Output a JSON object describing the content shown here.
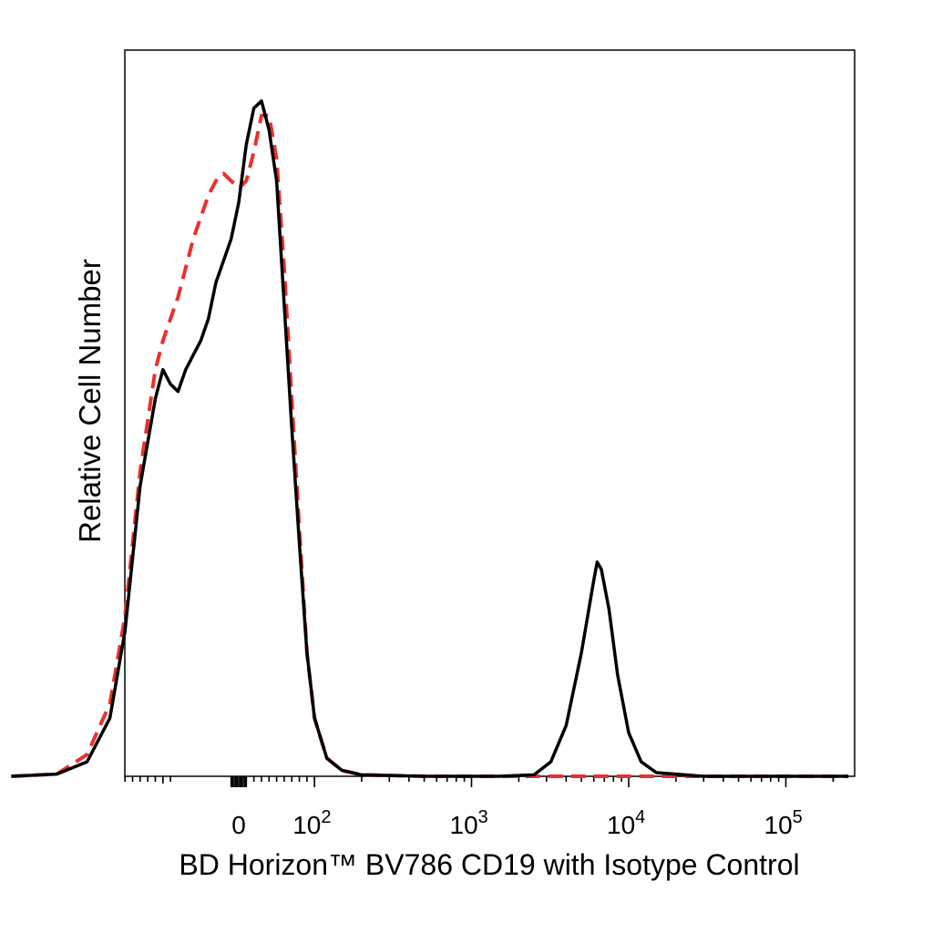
{
  "chart_data": {
    "type": "line",
    "title": "",
    "xlabel": "BD Horizon™ BV786 CD19 with Isotype Control",
    "ylabel": "Relative Cell Number",
    "x_scale": "biexponential",
    "xlim": [
      -300,
      250000
    ],
    "ylim": [
      0,
      1
    ],
    "grid": false,
    "legend": "none",
    "tick_labels": [
      {
        "value": 0,
        "base": "0",
        "exp": ""
      },
      {
        "value": 100,
        "base": "10",
        "exp": "2"
      },
      {
        "value": 1000,
        "base": "10",
        "exp": "3"
      },
      {
        "value": 10000,
        "base": "10",
        "exp": "4"
      },
      {
        "value": 100000,
        "base": "10",
        "exp": "5"
      }
    ],
    "series": [
      {
        "color": "#000000",
        "dash": "solid",
        "points": [
          [
            -300,
            0
          ],
          [
            -240,
            0.003
          ],
          [
            -200,
            0.02
          ],
          [
            -170,
            0.08
          ],
          [
            -150,
            0.2
          ],
          [
            -130,
            0.4
          ],
          [
            -110,
            0.52
          ],
          [
            -100,
            0.56
          ],
          [
            -90,
            0.54
          ],
          [
            -80,
            0.53
          ],
          [
            -70,
            0.56
          ],
          [
            -60,
            0.58
          ],
          [
            -50,
            0.6
          ],
          [
            -40,
            0.63
          ],
          [
            -30,
            0.68
          ],
          [
            -20,
            0.71
          ],
          [
            -10,
            0.74
          ],
          [
            0,
            0.79
          ],
          [
            10,
            0.87
          ],
          [
            20,
            0.92
          ],
          [
            30,
            0.93
          ],
          [
            40,
            0.89
          ],
          [
            50,
            0.82
          ],
          [
            60,
            0.65
          ],
          [
            70,
            0.48
          ],
          [
            80,
            0.32
          ],
          [
            90,
            0.17
          ],
          [
            100,
            0.08
          ],
          [
            120,
            0.025
          ],
          [
            150,
            0.008
          ],
          [
            200,
            0.002
          ],
          [
            500,
            0
          ],
          [
            1500,
            0
          ],
          [
            2500,
            0.002
          ],
          [
            3200,
            0.02
          ],
          [
            4000,
            0.07
          ],
          [
            5000,
            0.17
          ],
          [
            6000,
            0.27
          ],
          [
            6300,
            0.295
          ],
          [
            6700,
            0.285
          ],
          [
            7500,
            0.23
          ],
          [
            8500,
            0.14
          ],
          [
            10000,
            0.06
          ],
          [
            12000,
            0.02
          ],
          [
            15000,
            0.005
          ],
          [
            30000,
            0
          ],
          [
            250000,
            0
          ]
        ]
      },
      {
        "color": "#e8312f",
        "dash": "dashed",
        "points": [
          [
            -300,
            0
          ],
          [
            -240,
            0.003
          ],
          [
            -200,
            0.03
          ],
          [
            -170,
            0.1
          ],
          [
            -150,
            0.22
          ],
          [
            -130,
            0.42
          ],
          [
            -110,
            0.56
          ],
          [
            -100,
            0.6
          ],
          [
            -90,
            0.63
          ],
          [
            -80,
            0.66
          ],
          [
            -70,
            0.7
          ],
          [
            -60,
            0.74
          ],
          [
            -50,
            0.77
          ],
          [
            -40,
            0.8
          ],
          [
            -30,
            0.82
          ],
          [
            -20,
            0.83
          ],
          [
            -10,
            0.82
          ],
          [
            0,
            0.81
          ],
          [
            10,
            0.82
          ],
          [
            20,
            0.86
          ],
          [
            30,
            0.91
          ],
          [
            40,
            0.91
          ],
          [
            50,
            0.85
          ],
          [
            60,
            0.7
          ],
          [
            70,
            0.52
          ],
          [
            80,
            0.34
          ],
          [
            90,
            0.17
          ],
          [
            100,
            0.08
          ],
          [
            120,
            0.025
          ],
          [
            150,
            0.008
          ],
          [
            200,
            0.002
          ],
          [
            500,
            0
          ],
          [
            2000,
            0
          ],
          [
            4000,
            0
          ],
          [
            8000,
            0
          ],
          [
            20000,
            0
          ],
          [
            250000,
            0
          ]
        ]
      }
    ]
  }
}
